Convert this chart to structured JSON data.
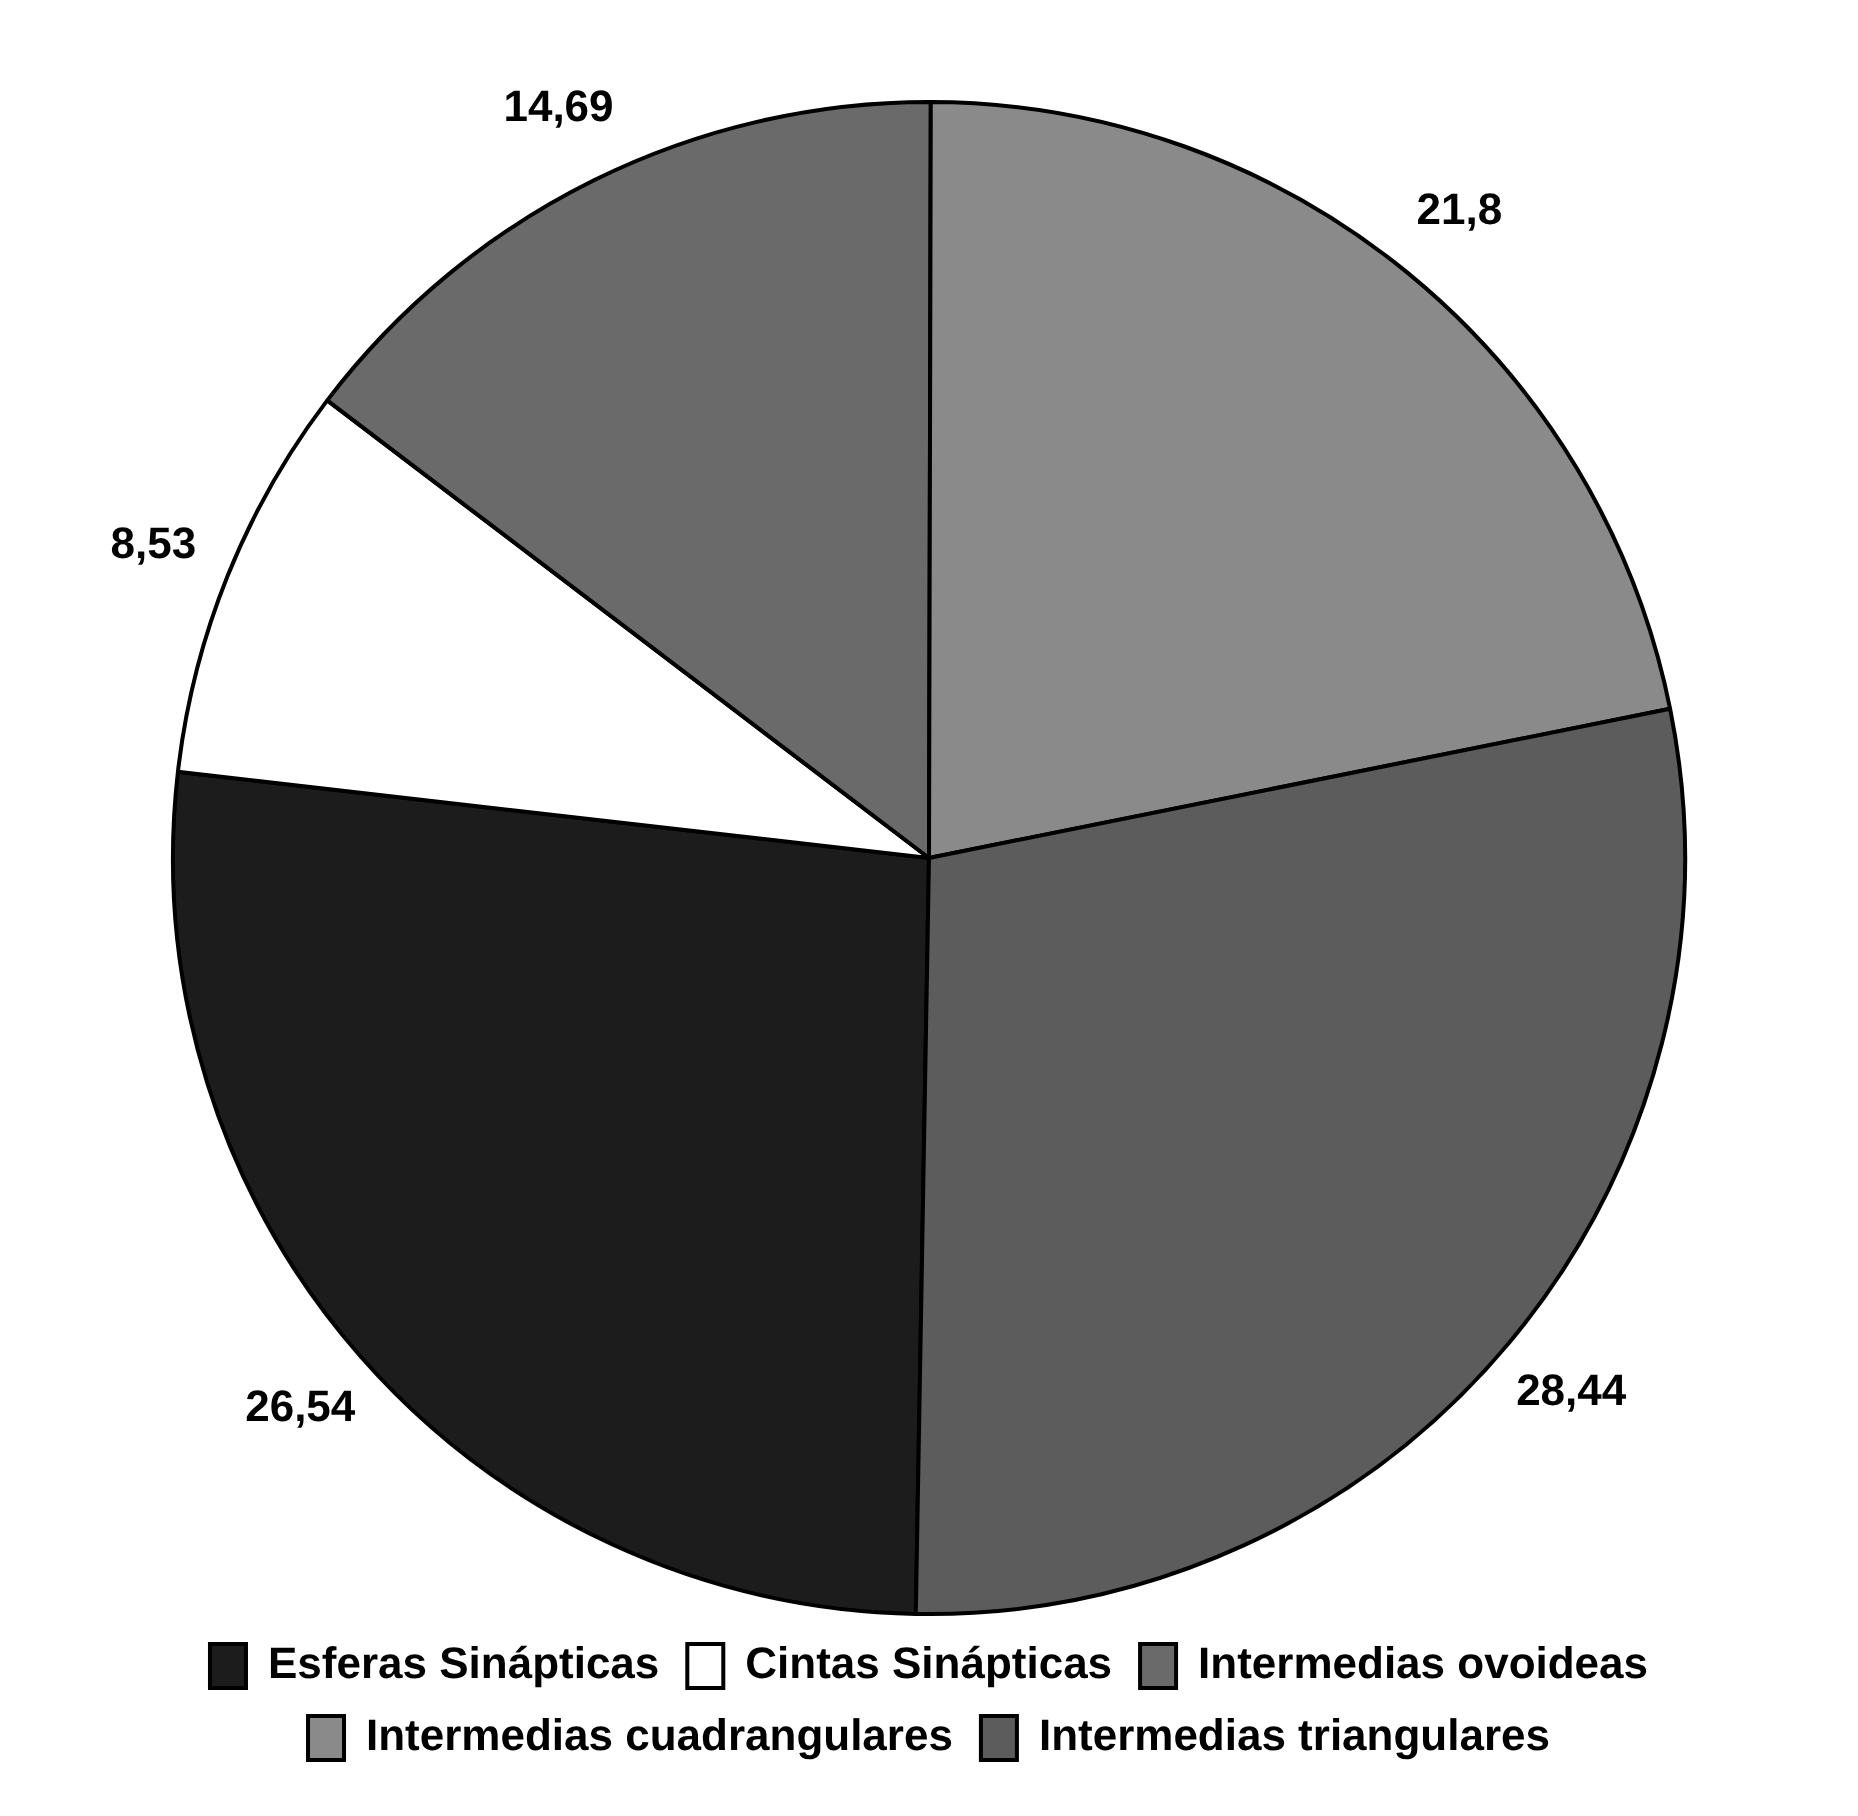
{
  "chart_data": {
    "type": "pie",
    "categories": [
      "Esferas Sinápticas",
      "Cintas Sinápticas",
      "Intermedias ovoideas",
      "Intermedias cuadrangulares",
      "Intermedias triangulares"
    ],
    "values": [
      26.54,
      8.53,
      14.69,
      21.8,
      28.44
    ],
    "value_labels": [
      "26,54",
      "8,53",
      "14,69",
      "21,8",
      "28,44"
    ],
    "colors": [
      "#1c1c1c",
      "#ffffff",
      "#6a6a6a",
      "#8a8a8a",
      "#5c5c5c"
    ],
    "legend": "bottom"
  }
}
